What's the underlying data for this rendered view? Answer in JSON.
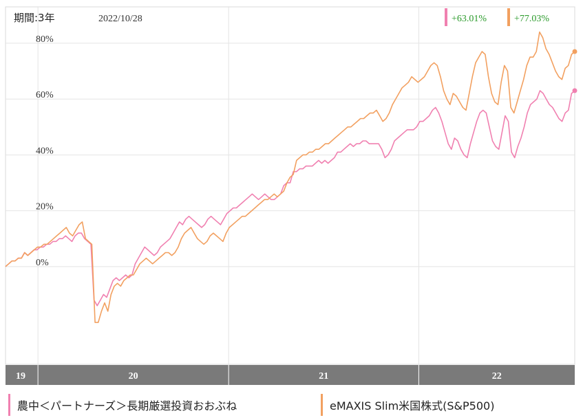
{
  "header": {
    "period_label": "期間:3年",
    "date": "2022/10/28"
  },
  "chart_data": {
    "type": "line",
    "x_ticks": [
      "19",
      "20",
      "21",
      "22"
    ],
    "y_ticks": [
      "0%",
      "20%",
      "40%",
      "60%",
      "80%"
    ],
    "ylim": [
      -35,
      93
    ],
    "grid": true,
    "legend_position": "bottom",
    "series": [
      {
        "name": "農中＜パートナーズ＞長期厳選投資おおぶね",
        "color": "#f080b0",
        "final_return": "+63.01%",
        "values": [
          0,
          1,
          2,
          2,
          3,
          3,
          5,
          4,
          5,
          6,
          6,
          7,
          7,
          8,
          8,
          9,
          9,
          10,
          10,
          11,
          10,
          9,
          11,
          12,
          12,
          10,
          9,
          8,
          -12,
          -14,
          -12,
          -10,
          -11,
          -8,
          -5,
          -4,
          -5,
          -4,
          -3,
          -4,
          -3,
          1,
          3,
          5,
          7,
          6,
          5,
          4,
          5,
          7,
          8,
          9,
          10,
          12,
          14,
          16,
          15,
          17,
          18,
          17,
          16,
          15,
          14,
          15,
          17,
          18,
          17,
          16,
          15,
          17,
          19,
          20,
          21,
          21,
          22,
          23,
          24,
          25,
          26,
          25,
          24,
          25,
          26,
          25,
          24,
          24,
          25,
          26,
          29,
          30,
          30,
          34,
          34,
          35,
          35,
          36,
          36,
          36,
          37,
          38,
          37,
          38,
          37,
          38,
          39,
          41,
          41,
          42,
          43,
          44,
          43,
          44,
          44,
          45,
          45,
          44,
          44,
          44,
          44,
          42,
          39,
          40,
          42,
          45,
          46,
          47,
          48,
          49,
          49,
          49,
          50,
          52,
          52,
          53,
          54,
          56,
          57,
          55,
          52,
          48,
          44,
          42,
          46,
          45,
          42,
          40,
          39,
          44,
          48,
          52,
          55,
          56,
          55,
          50,
          45,
          43,
          42,
          48,
          54,
          52,
          41,
          39,
          43,
          46,
          50,
          55,
          58,
          59,
          60,
          63,
          62,
          60,
          58,
          57,
          55,
          53,
          52,
          55,
          56,
          62,
          63
        ]
      },
      {
        "name": "eMAXIS Slim米国株式(S&P500)",
        "color": "#f2a060",
        "final_return": "+77.03%",
        "values": [
          0,
          1,
          2,
          2,
          3,
          3,
          5,
          4,
          5,
          6,
          7,
          7,
          8,
          8,
          9,
          10,
          11,
          12,
          13,
          14,
          12,
          11,
          13,
          15,
          16,
          10,
          9,
          8,
          -20,
          -20,
          -16,
          -13,
          -16,
          -10,
          -7,
          -6,
          -7,
          -5,
          -4,
          -3,
          -3,
          -1,
          1,
          2,
          3,
          2,
          1,
          2,
          3,
          4,
          5,
          5,
          4,
          5,
          7,
          10,
          12,
          13,
          14,
          12,
          10,
          9,
          8,
          9,
          11,
          12,
          11,
          10,
          9,
          12,
          14,
          15,
          16,
          17,
          18,
          18,
          19,
          20,
          21,
          22,
          23,
          24,
          24,
          25,
          26,
          25,
          26,
          27,
          30,
          32,
          33,
          38,
          39,
          40,
          40,
          41,
          41,
          42,
          42,
          43,
          44,
          44,
          45,
          46,
          47,
          48,
          49,
          50,
          50,
          51,
          52,
          53,
          53,
          54,
          55,
          55,
          56,
          54,
          52,
          53,
          55,
          58,
          60,
          62,
          64,
          65,
          66,
          68,
          67,
          66,
          67,
          68,
          70,
          72,
          73,
          72,
          68,
          63,
          60,
          58,
          62,
          61,
          59,
          57,
          56,
          62,
          68,
          73,
          75,
          77,
          76,
          68,
          62,
          59,
          58,
          66,
          72,
          70,
          57,
          55,
          59,
          63,
          67,
          72,
          75,
          75,
          77,
          84,
          82,
          78,
          76,
          73,
          70,
          68,
          67,
          71,
          72,
          76,
          77
        ]
      }
    ]
  }
}
